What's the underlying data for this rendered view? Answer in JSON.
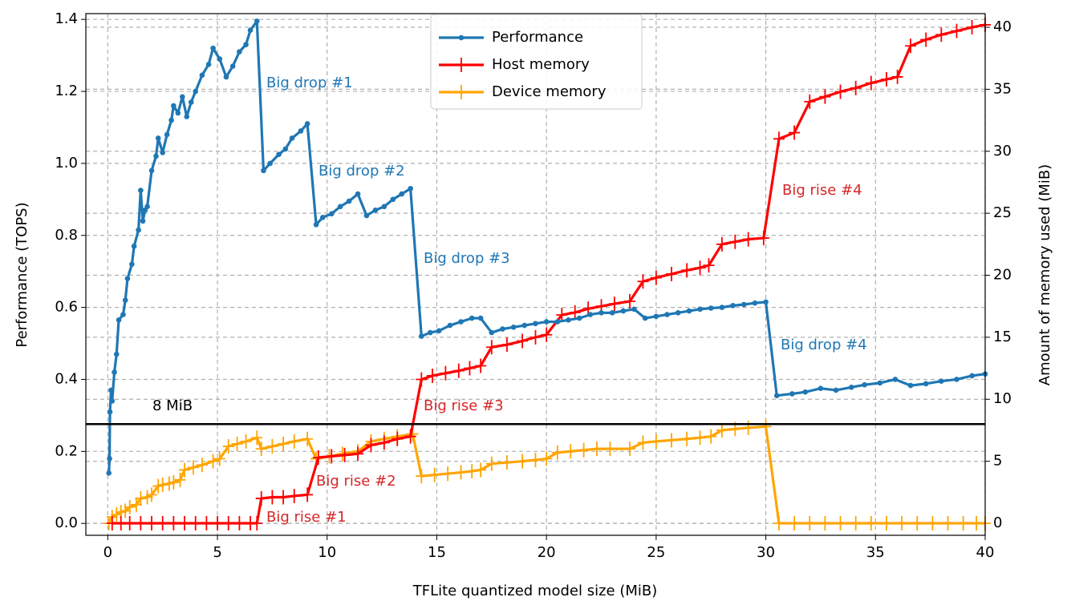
{
  "chart_data": {
    "type": "line",
    "xlabel": "TFLite quantized model size (MiB)",
    "ylabel": "Performance (TOPS)",
    "y2label": "Amount of memory used (MiB)",
    "xlim": [
      -1,
      40
    ],
    "ylim": [
      -0.033,
      1.416
    ],
    "y2lim": [
      -0.97,
      41.1
    ],
    "xticks": [
      0,
      5,
      10,
      15,
      20,
      25,
      30,
      35,
      40
    ],
    "yticks": [
      {
        "value": 0,
        "label": "0.0"
      },
      0.2,
      0.4,
      0.6,
      0.8,
      {
        "value": 1,
        "label": "1.0"
      },
      1.2,
      1.4
    ],
    "y2ticks": [
      0,
      5,
      10,
      15,
      20,
      25,
      30,
      35,
      40
    ],
    "grid": true,
    "legend": "upper center",
    "series": [
      {
        "name": "Performance",
        "color": "#1f77b4",
        "marker": "o",
        "axis": "y",
        "x": [
          0.05,
          0.08,
          0.1,
          0.15,
          0.2,
          0.3,
          0.4,
          0.5,
          0.7,
          0.8,
          0.9,
          1.1,
          1.2,
          1.4,
          1.5,
          1.6,
          1.7,
          1.8,
          2.0,
          2.2,
          2.3,
          2.5,
          2.7,
          2.9,
          3.0,
          3.2,
          3.4,
          3.6,
          3.8,
          4.0,
          4.3,
          4.6,
          4.8,
          5.1,
          5.4,
          5.7,
          6.0,
          6.3,
          6.5,
          6.8,
          7.1,
          7.4,
          7.8,
          8.1,
          8.4,
          8.8,
          9.1,
          9.5,
          9.8,
          10.2,
          10.6,
          11.0,
          11.4,
          11.8,
          12.2,
          12.6,
          13.0,
          13.4,
          13.8,
          14.3,
          14.7,
          15.1,
          15.6,
          16.1,
          16.6,
          17.0,
          17.5,
          18.0,
          18.5,
          19.0,
          19.5,
          20.0,
          20.5,
          21.0,
          21.5,
          22.0,
          22.5,
          23.0,
          23.5,
          24.0,
          24.5,
          25.0,
          25.5,
          26.0,
          26.5,
          27.0,
          27.5,
          28.0,
          28.5,
          29.0,
          29.5,
          30.0,
          30.5,
          31.2,
          31.8,
          32.5,
          33.2,
          33.9,
          34.5,
          35.2,
          35.9,
          36.6,
          37.3,
          38.0,
          38.7,
          39.4,
          40.0
        ],
        "values": [
          0.14,
          0.18,
          0.31,
          0.37,
          0.34,
          0.42,
          0.47,
          0.565,
          0.58,
          0.62,
          0.68,
          0.72,
          0.77,
          0.815,
          0.925,
          0.84,
          0.87,
          0.88,
          0.98,
          1.02,
          1.07,
          1.03,
          1.08,
          1.12,
          1.16,
          1.14,
          1.185,
          1.13,
          1.17,
          1.2,
          1.245,
          1.275,
          1.32,
          1.29,
          1.24,
          1.27,
          1.31,
          1.33,
          1.37,
          1.395,
          0.98,
          1.0,
          1.025,
          1.04,
          1.07,
          1.09,
          1.11,
          0.83,
          0.85,
          0.86,
          0.88,
          0.895,
          0.915,
          0.855,
          0.87,
          0.88,
          0.9,
          0.915,
          0.93,
          0.52,
          0.53,
          0.535,
          0.55,
          0.56,
          0.57,
          0.57,
          0.53,
          0.54,
          0.545,
          0.55,
          0.555,
          0.56,
          0.56,
          0.565,
          0.57,
          0.58,
          0.585,
          0.585,
          0.59,
          0.595,
          0.57,
          0.575,
          0.58,
          0.585,
          0.59,
          0.595,
          0.598,
          0.6,
          0.605,
          0.608,
          0.612,
          0.615,
          0.355,
          0.36,
          0.365,
          0.375,
          0.37,
          0.378,
          0.385,
          0.39,
          0.4,
          0.383,
          0.388,
          0.395,
          0.4,
          0.41,
          0.415
        ]
      },
      {
        "name": "Host memory",
        "color": "#ff0000",
        "marker": "+",
        "axis": "y2",
        "x": [
          0.2,
          0.6,
          1.0,
          1.5,
          2.0,
          2.5,
          3.0,
          3.5,
          4.0,
          4.5,
          5.0,
          5.5,
          6.0,
          6.5,
          6.8,
          7.0,
          7.5,
          8.0,
          8.5,
          9.1,
          9.6,
          10.2,
          10.8,
          11.4,
          12.0,
          12.6,
          13.2,
          13.8,
          14.3,
          14.8,
          15.4,
          16.0,
          16.5,
          17.0,
          17.5,
          18.2,
          18.9,
          19.5,
          20.0,
          20.7,
          21.3,
          21.9,
          22.5,
          23.1,
          23.8,
          24.4,
          25.0,
          25.7,
          26.4,
          27.0,
          27.4,
          28.0,
          28.6,
          29.2,
          29.9,
          30.6,
          31.3,
          32.0,
          32.7,
          33.4,
          34.1,
          34.8,
          35.5,
          36.0,
          36.6,
          37.3,
          38.0,
          38.7,
          39.4,
          40.0
        ],
        "values": [
          0,
          0,
          0,
          0,
          0,
          0,
          0,
          0,
          0,
          0,
          0,
          0,
          0,
          0,
          0,
          2.0,
          2.1,
          2.1,
          2.2,
          2.3,
          5.3,
          5.4,
          5.5,
          5.6,
          6.3,
          6.5,
          6.8,
          7.0,
          11.6,
          11.9,
          12.1,
          12.3,
          12.5,
          12.7,
          14.2,
          14.4,
          14.7,
          15.0,
          15.2,
          16.8,
          17.0,
          17.3,
          17.5,
          17.7,
          17.9,
          19.5,
          19.8,
          20.1,
          20.4,
          20.6,
          20.8,
          22.5,
          22.7,
          22.9,
          23.0,
          31.0,
          31.5,
          34.0,
          34.4,
          34.8,
          35.1,
          35.5,
          35.8,
          36.0,
          38.5,
          39.0,
          39.4,
          39.7,
          40.0,
          40.2
        ]
      },
      {
        "name": "Device memory",
        "color": "#ffa500",
        "marker": "+",
        "axis": "y2",
        "x": [
          0.05,
          0.2,
          0.4,
          0.6,
          0.8,
          1.0,
          1.3,
          1.5,
          1.8,
          2.0,
          2.3,
          2.5,
          2.8,
          3.0,
          3.3,
          3.5,
          3.9,
          4.3,
          4.8,
          5.1,
          5.5,
          5.9,
          6.3,
          6.8,
          7.0,
          7.5,
          8.0,
          8.5,
          9.1,
          9.5,
          10.1,
          10.7,
          11.4,
          12.0,
          12.6,
          13.2,
          13.9,
          14.3,
          14.9,
          15.5,
          16.1,
          16.6,
          17.0,
          17.5,
          18.2,
          18.9,
          19.5,
          20.0,
          20.5,
          21.1,
          21.7,
          22.3,
          22.9,
          23.8,
          24.4,
          25.0,
          25.7,
          26.4,
          27.0,
          27.5,
          28.0,
          28.6,
          29.2,
          30.0,
          30.6,
          31.3,
          32.0,
          32.7,
          33.4,
          34.1,
          34.8,
          35.5,
          36.2,
          36.9,
          37.6,
          38.3,
          39.0,
          39.6,
          40.0
        ],
        "values": [
          0,
          0.5,
          0.7,
          0.9,
          1.0,
          1.3,
          1.5,
          2.0,
          2.1,
          2.3,
          3.0,
          3.1,
          3.2,
          3.3,
          3.5,
          4.3,
          4.5,
          4.7,
          5.0,
          5.2,
          6.2,
          6.4,
          6.6,
          6.9,
          6.0,
          6.2,
          6.4,
          6.6,
          6.8,
          5.2,
          5.4,
          5.6,
          5.8,
          6.6,
          6.8,
          7.0,
          7.2,
          3.8,
          3.9,
          4.0,
          4.1,
          4.2,
          4.3,
          4.8,
          4.9,
          5.0,
          5.1,
          5.2,
          5.7,
          5.8,
          5.9,
          6.0,
          6.0,
          6.0,
          6.5,
          6.6,
          6.7,
          6.8,
          6.9,
          7.0,
          7.5,
          7.6,
          7.7,
          7.8,
          0,
          0,
          0,
          0,
          0,
          0,
          0,
          0,
          0,
          0,
          0,
          0,
          0,
          0,
          0
        ]
      }
    ],
    "hline": {
      "value": 8,
      "axis": "y2",
      "color": "#000000",
      "label": "8 MiB"
    },
    "annotations": [
      {
        "text": "Big drop #1",
        "color": "#1f77b4"
      },
      {
        "text": "Big drop #2",
        "color": "#1f77b4"
      },
      {
        "text": "Big drop #3",
        "color": "#1f77b4"
      },
      {
        "text": "Big drop #4",
        "color": "#1f77b4"
      },
      {
        "text": "Big rise #1",
        "color": "#d62728"
      },
      {
        "text": "Big rise #2",
        "color": "#d62728"
      },
      {
        "text": "Big rise #3",
        "color": "#d62728"
      },
      {
        "text": "Big rise #4",
        "color": "#d62728"
      }
    ]
  }
}
